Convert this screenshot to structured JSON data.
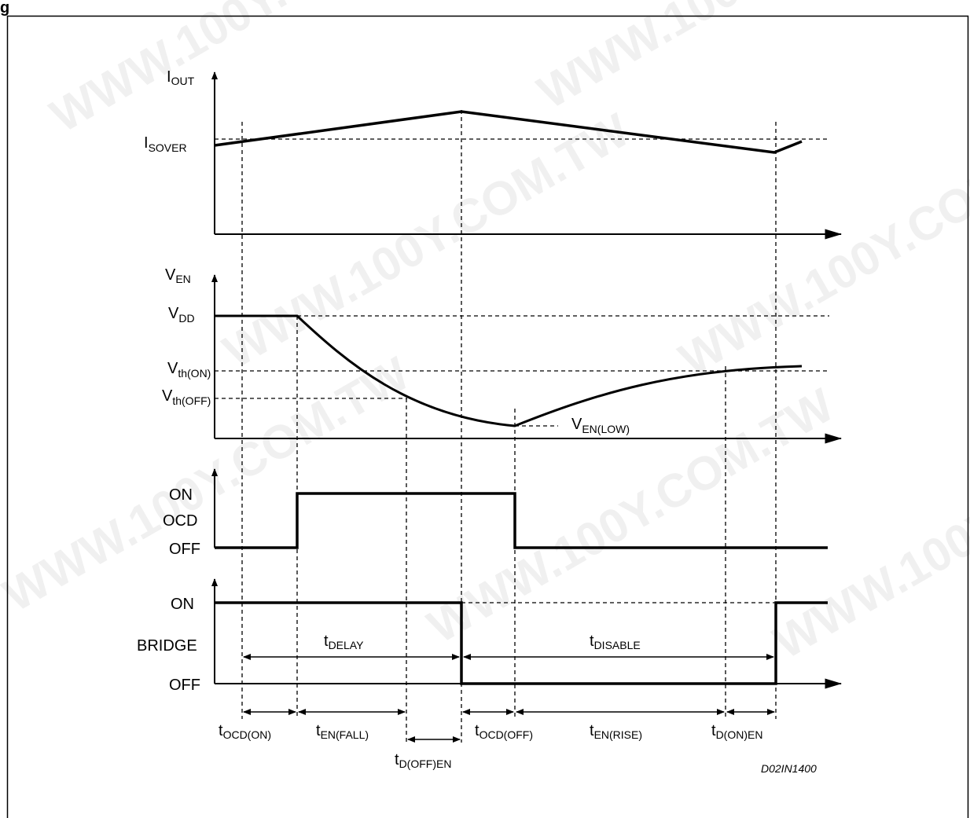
{
  "figure": {
    "title_fragment": "g",
    "code": "D02IN1400",
    "watermark": "WWW.100Y.COM.TW"
  },
  "panels": {
    "iout": {
      "axis_label": "I",
      "axis_label_sub": "OUT",
      "level_label": "I",
      "level_label_sub": "SOVER"
    },
    "ven": {
      "axis_label": "V",
      "axis_label_sub": "EN",
      "vdd_label": "V",
      "vdd_label_sub": "DD",
      "vth_on_label": "V",
      "vth_on_label_sub": "th(ON)",
      "vth_off_label": "V",
      "vth_off_label_sub": "th(OFF)",
      "ven_low_label": "V",
      "ven_low_label_sub": "EN(LOW)"
    },
    "ocd": {
      "on_label": "ON",
      "name_label": "OCD",
      "off_label": "OFF"
    },
    "bridge": {
      "on_label": "ON",
      "name_label": "BRIDGE",
      "off_label": "OFF",
      "delay_label": "t",
      "delay_label_sub": "DELAY",
      "disable_label": "t",
      "disable_label_sub": "DISABLE"
    }
  },
  "timing": [
    {
      "main": "t",
      "sub": "OCD(ON)"
    },
    {
      "main": "t",
      "sub": "EN(FALL)"
    },
    {
      "main": "t",
      "sub": "D(OFF)EN"
    },
    {
      "main": "t",
      "sub": "OCD(OFF)"
    },
    {
      "main": "t",
      "sub": "EN(RISE)"
    },
    {
      "main": "t",
      "sub": "D(ON)EN"
    }
  ]
}
